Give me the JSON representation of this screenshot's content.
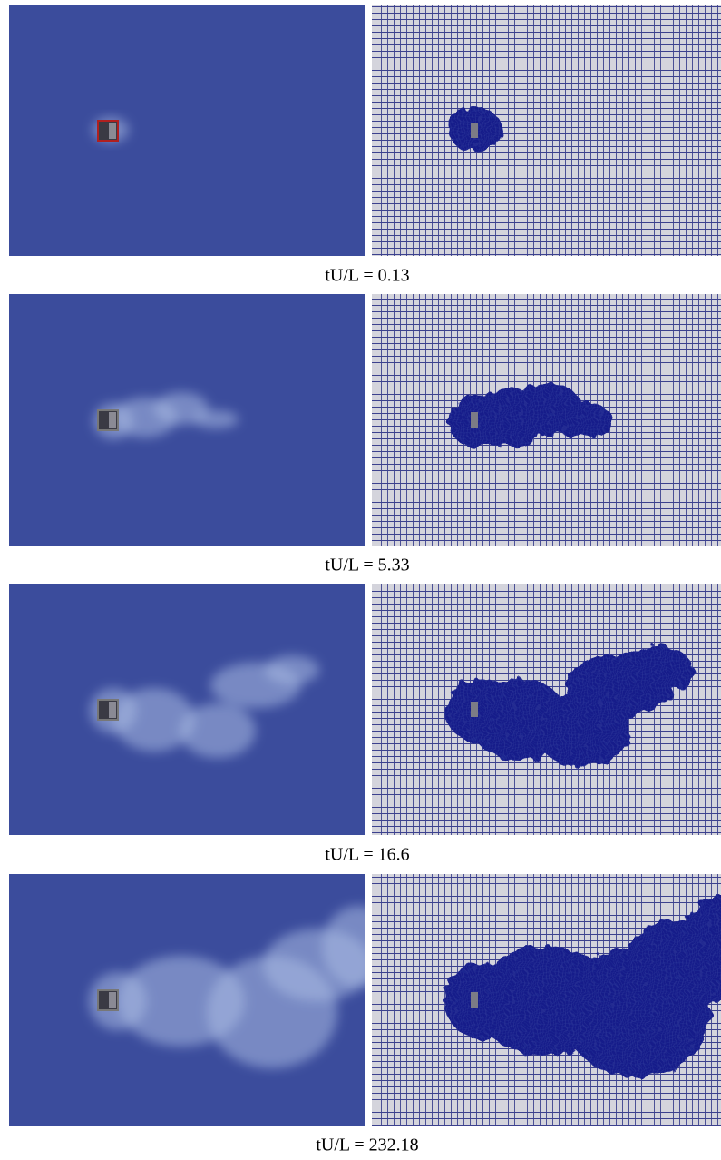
{
  "panels": [
    {
      "caption": "tU/L = 0.13"
    },
    {
      "caption": "tU/L = 5.33"
    },
    {
      "caption": "tU/L = 16.6"
    },
    {
      "caption": "tU/L = 232.18"
    }
  ]
}
